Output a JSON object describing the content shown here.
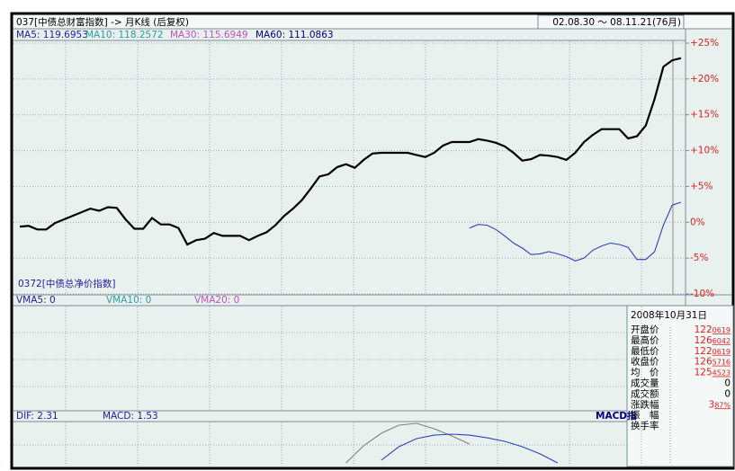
{
  "header": {
    "title": "037[中债总财富指数] -> 月K线 (后复权)",
    "date_range": "02.08.30 ～ 08.11.21(76月)"
  },
  "ma_legend": [
    {
      "label": "MA5: 119.6953",
      "color": "#2020a0"
    },
    {
      "label": "MA10: 118.2572",
      "color": "#2a9d9d"
    },
    {
      "label": "MA30: 115.6949",
      "color": "#c050c0"
    },
    {
      "label": "MA60: 111.0863",
      "color": "#000080"
    }
  ],
  "volume_legend": [
    {
      "label": "VMA5: 0",
      "color": "#2020a0"
    },
    {
      "label": "VMA10: 0",
      "color": "#2a9d9d"
    },
    {
      "label": "VMA20: 0",
      "color": "#c050c0"
    }
  ],
  "chart_data": [
    {
      "type": "line",
      "annotation": "0372[中债总净价指数]",
      "xlim": [
        0,
        75
      ],
      "ylim": [
        -10,
        25
      ],
      "yticks": [
        {
          "value": 25,
          "label": "+25%"
        },
        {
          "value": 20,
          "label": "+20%"
        },
        {
          "value": 15,
          "label": "+15%"
        },
        {
          "value": 10,
          "label": "+10%"
        },
        {
          "value": 5,
          "label": "+5%"
        },
        {
          "value": 0,
          "label": "0%"
        },
        {
          "value": -5,
          "label": "-5%"
        },
        {
          "value": -10,
          "label": "-10%"
        }
      ],
      "grid": true,
      "series": [
        {
          "color": "#000000",
          "values": [
            -0.6,
            -0.5,
            -1.0,
            -1.0,
            -0.1,
            0.4,
            0.9,
            1.4,
            1.9,
            1.6,
            2.1,
            2.0,
            0.4,
            -0.9,
            -0.9,
            0.6,
            -0.3,
            -0.3,
            -0.8,
            -3.1,
            -2.5,
            -2.3,
            -1.5,
            -1.9,
            -1.9,
            -1.9,
            -2.5,
            -1.9,
            -1.4,
            -0.4,
            0.9,
            1.9,
            3.1,
            4.7,
            6.4,
            6.7,
            7.7,
            8.1,
            7.6,
            8.7,
            9.6,
            9.7,
            9.7,
            9.7,
            9.7,
            9.4,
            9.1,
            9.7,
            10.7,
            11.2,
            11.2,
            11.2,
            11.6,
            11.4,
            11.1,
            10.6,
            9.7,
            8.6,
            8.8,
            9.4,
            9.3,
            9.1,
            8.7,
            9.7,
            11.2,
            12.2,
            13.0,
            13.0,
            13.0,
            11.7,
            12.0,
            13.5,
            17.2,
            21.7,
            22.6,
            22.9
          ]
        },
        {
          "color": "#3040c0",
          "values": [
            null,
            null,
            null,
            null,
            null,
            null,
            null,
            null,
            null,
            null,
            null,
            null,
            null,
            null,
            null,
            null,
            null,
            null,
            null,
            null,
            null,
            null,
            null,
            null,
            null,
            null,
            null,
            null,
            null,
            null,
            null,
            null,
            null,
            null,
            null,
            null,
            null,
            null,
            null,
            null,
            null,
            null,
            null,
            null,
            null,
            null,
            null,
            null,
            null,
            null,
            null,
            -0.8,
            -0.3,
            -0.4,
            -1.0,
            -1.9,
            -2.9,
            -3.6,
            -4.5,
            -4.4,
            -4.1,
            -4.4,
            -4.8,
            -5.4,
            -5.0,
            -3.9,
            -3.3,
            -2.9,
            -3.1,
            -3.5,
            -5.2,
            -5.2,
            -4.1,
            -0.4,
            2.4,
            2.8
          ]
        }
      ]
    },
    {
      "type": "line",
      "labels": [
        {
          "text": "DIF: 2.31",
          "color": "#2020a0"
        },
        {
          "text": "MACD: 1.53",
          "color": "#2020a0"
        },
        {
          "text": "MACD指",
          "color": "#000080"
        }
      ],
      "xlim": [
        0,
        75
      ],
      "ylim": [
        0,
        3
      ],
      "x": [
        37,
        39,
        41,
        43,
        45,
        47,
        49,
        51,
        53,
        55,
        57,
        59,
        61
      ],
      "series": [
        {
          "color": "#808080",
          "values": [
            0,
            1.08,
            1.87,
            2.38,
            2.49,
            2.15,
            1.7,
            1.19,
            null,
            null,
            null,
            null,
            null
          ]
        },
        {
          "color": "#3040c0",
          "values": [
            null,
            null,
            0.17,
            1.02,
            1.53,
            1.75,
            1.81,
            1.75,
            1.58,
            1.36,
            1.02,
            0.57,
            0
          ]
        }
      ]
    }
  ],
  "info_panel": {
    "date": "2008年10月31日",
    "rows": [
      {
        "label": "开盘价",
        "int": "122",
        "dec": "0619"
      },
      {
        "label": "最高价",
        "int": "126",
        "dec": "6042"
      },
      {
        "label": "最低价",
        "int": "122",
        "dec": "0619"
      },
      {
        "label": "收盘价",
        "int": "126",
        "dec": "5716"
      },
      {
        "label": "均　价",
        "int": "125",
        "dec": "4523"
      },
      {
        "label": "成交量",
        "plain": "0"
      },
      {
        "label": "成交额",
        "plain": "0"
      },
      {
        "label": "涨跌幅",
        "int": "3",
        "dec": "87%"
      },
      {
        "label": "振　幅"
      },
      {
        "label": "换手率"
      }
    ]
  }
}
